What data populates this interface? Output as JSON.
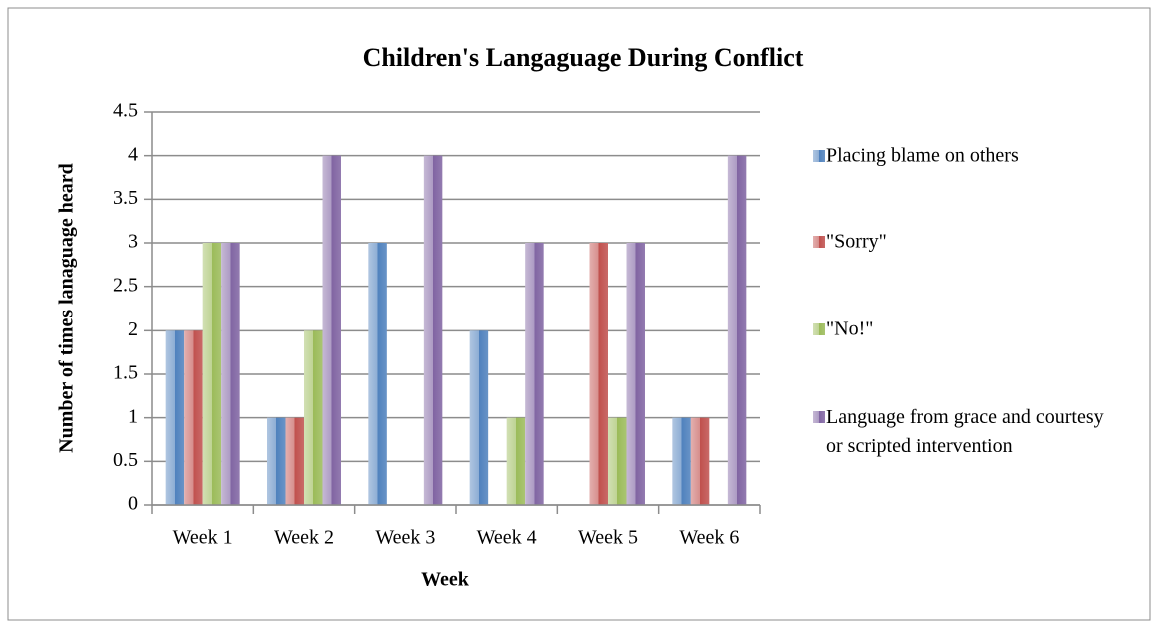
{
  "chart_data": {
    "type": "bar",
    "title": "Children's Langaguage During Conflict",
    "x_label": "Week",
    "y_label": "Number of times lanaguage heard",
    "categories": [
      "Week 1",
      "Week 2",
      "Week 3",
      "Week 4",
      "Week 5",
      "Week 6"
    ],
    "series": [
      {
        "name": "Placing blame on others",
        "color": "#4f81bd",
        "values": [
          2,
          1,
          3,
          2,
          0,
          1
        ]
      },
      {
        "name": "\"Sorry\"",
        "color": "#c0504d",
        "values": [
          2,
          1,
          0,
          0,
          3,
          1
        ]
      },
      {
        "name": "\"No!\"",
        "color": "#9bbb59",
        "values": [
          3,
          2,
          0,
          1,
          1,
          0
        ]
      },
      {
        "name": "Language from grace and courtesy or scripted intervention",
        "color": "#8064a2",
        "values": [
          3,
          4,
          4,
          3,
          3,
          4
        ]
      }
    ],
    "ylim": [
      0,
      4.5
    ],
    "yticks": [
      0,
      0.5,
      1,
      1.5,
      2,
      2.5,
      3,
      3.5,
      4,
      4.5
    ],
    "grid": true,
    "legend": "right"
  }
}
